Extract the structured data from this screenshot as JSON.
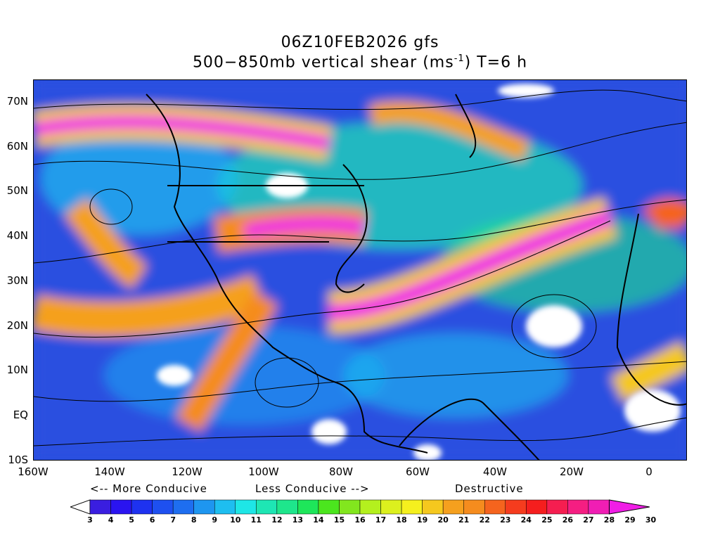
{
  "title": {
    "line1": "06Z10FEB2026 gfs",
    "line2_prefix": "500−850mb vertical shear (ms",
    "line2_sup": "-1",
    "line2_suffix": ") T=6 h"
  },
  "axes": {
    "y_labels": [
      "70N",
      "60N",
      "50N",
      "40N",
      "30N",
      "20N",
      "10N",
      "EQ",
      "10S"
    ],
    "x_labels": [
      "160W",
      "140W",
      "120W",
      "100W",
      "80W",
      "60W",
      "40W",
      "20W",
      "0"
    ],
    "lon_range": [
      -160,
      10
    ],
    "lat_range": [
      -10,
      75
    ]
  },
  "conducive": {
    "more": "<-- More Conducive",
    "less": "Less Conducive -->",
    "destructive": "Destructive"
  },
  "colorbar": {
    "labels": [
      "3",
      "4",
      "5",
      "6",
      "7",
      "8",
      "9",
      "10",
      "11",
      "12",
      "13",
      "14",
      "15",
      "16",
      "17",
      "18",
      "19",
      "20",
      "21",
      "22",
      "23",
      "24",
      "25",
      "26",
      "27",
      "28",
      "29",
      "30"
    ],
    "colors": [
      "#ffffff",
      "#3a1ee0",
      "#2a14f0",
      "#1e32f0",
      "#1e50f0",
      "#1e6ef0",
      "#1e96f0",
      "#1ebef0",
      "#1ee6e6",
      "#1ee6b4",
      "#1ee68c",
      "#1ee65a",
      "#4be61e",
      "#82e61e",
      "#b4f01e",
      "#dcf01e",
      "#f5f01e",
      "#f5c81e",
      "#f5a01e",
      "#f58c1e",
      "#f5641e",
      "#f53c1e",
      "#f51e1e",
      "#f51e50",
      "#f51e82",
      "#f01eb4",
      "#f01ee6"
    ]
  },
  "colors": {
    "background_blue": "#2a4fe0",
    "jet_magenta": "#f01ee6",
    "land_outline": "#000000"
  }
}
